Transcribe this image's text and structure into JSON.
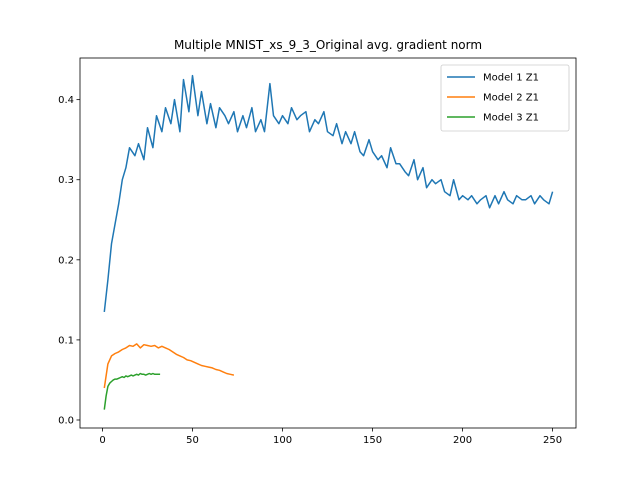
{
  "chart_data": {
    "type": "line",
    "title": "Multiple MNIST_xs_9_3_Original avg. gradient norm",
    "xlabel": "",
    "ylabel": "",
    "xlim": [
      -12.5,
      263
    ],
    "ylim": [
      -0.01,
      0.452
    ],
    "xticks": [
      0,
      50,
      100,
      150,
      200,
      250
    ],
    "yticks": [
      0.0,
      0.1,
      0.2,
      0.3,
      0.4
    ],
    "grid": false,
    "legend_position": "upper right",
    "series": [
      {
        "name": "Model 1 Z1",
        "color": "#1f77b4",
        "x": [
          1,
          3,
          5,
          7,
          9,
          11,
          13,
          15,
          18,
          20,
          23,
          25,
          28,
          30,
          33,
          35,
          38,
          40,
          43,
          45,
          48,
          50,
          53,
          55,
          58,
          60,
          63,
          65,
          68,
          70,
          73,
          75,
          78,
          80,
          83,
          85,
          88,
          90,
          93,
          95,
          98,
          100,
          103,
          105,
          108,
          110,
          113,
          115,
          118,
          120,
          123,
          125,
          128,
          130,
          133,
          135,
          138,
          140,
          143,
          145,
          148,
          150,
          153,
          155,
          158,
          160,
          163,
          165,
          168,
          170,
          173,
          175,
          178,
          180,
          183,
          185,
          188,
          190,
          193,
          195,
          198,
          200,
          203,
          205,
          208,
          210,
          213,
          215,
          218,
          220,
          223,
          225,
          228,
          230,
          233,
          235,
          238,
          240,
          243,
          245,
          248,
          250
        ],
        "y": [
          0.135,
          0.175,
          0.22,
          0.245,
          0.27,
          0.3,
          0.315,
          0.34,
          0.33,
          0.345,
          0.325,
          0.365,
          0.34,
          0.38,
          0.36,
          0.39,
          0.37,
          0.4,
          0.36,
          0.425,
          0.385,
          0.43,
          0.38,
          0.41,
          0.37,
          0.395,
          0.365,
          0.39,
          0.38,
          0.37,
          0.385,
          0.36,
          0.38,
          0.365,
          0.39,
          0.36,
          0.375,
          0.36,
          0.42,
          0.38,
          0.37,
          0.38,
          0.37,
          0.39,
          0.375,
          0.38,
          0.385,
          0.36,
          0.375,
          0.37,
          0.385,
          0.36,
          0.355,
          0.37,
          0.345,
          0.36,
          0.345,
          0.36,
          0.335,
          0.33,
          0.35,
          0.335,
          0.325,
          0.33,
          0.315,
          0.34,
          0.32,
          0.32,
          0.31,
          0.305,
          0.325,
          0.3,
          0.315,
          0.29,
          0.3,
          0.295,
          0.3,
          0.285,
          0.28,
          0.3,
          0.275,
          0.28,
          0.275,
          0.28,
          0.27,
          0.275,
          0.28,
          0.265,
          0.28,
          0.27,
          0.285,
          0.275,
          0.27,
          0.28,
          0.275,
          0.275,
          0.28,
          0.27,
          0.28,
          0.275,
          0.27,
          0.285
        ]
      },
      {
        "name": "Model 2 Z1",
        "color": "#ff7f0e",
        "x": [
          1,
          3,
          5,
          7,
          9,
          11,
          13,
          15,
          17,
          19,
          21,
          23,
          25,
          27,
          29,
          31,
          33,
          35,
          37,
          39,
          41,
          43,
          45,
          47,
          49,
          51,
          53,
          55,
          57,
          59,
          61,
          63,
          65,
          67,
          69,
          71,
          73
        ],
        "y": [
          0.04,
          0.07,
          0.08,
          0.083,
          0.085,
          0.088,
          0.09,
          0.093,
          0.092,
          0.095,
          0.09,
          0.094,
          0.093,
          0.092,
          0.093,
          0.09,
          0.092,
          0.09,
          0.088,
          0.085,
          0.082,
          0.08,
          0.078,
          0.075,
          0.074,
          0.072,
          0.07,
          0.068,
          0.067,
          0.066,
          0.065,
          0.063,
          0.062,
          0.06,
          0.058,
          0.057,
          0.056
        ]
      },
      {
        "name": "Model 3 Z1",
        "color": "#2ca02c",
        "x": [
          1,
          2,
          3,
          4,
          5,
          6,
          7,
          8,
          9,
          10,
          11,
          12,
          13,
          14,
          15,
          16,
          17,
          18,
          19,
          20,
          21,
          22,
          23,
          24,
          25,
          26,
          27,
          28,
          29,
          30,
          31,
          32
        ],
        "y": [
          0.013,
          0.03,
          0.042,
          0.046,
          0.048,
          0.05,
          0.051,
          0.051,
          0.052,
          0.053,
          0.054,
          0.053,
          0.055,
          0.054,
          0.055,
          0.056,
          0.055,
          0.056,
          0.057,
          0.056,
          0.058,
          0.057,
          0.057,
          0.056,
          0.057,
          0.058,
          0.057,
          0.058,
          0.057,
          0.057,
          0.057,
          0.057
        ]
      }
    ]
  }
}
